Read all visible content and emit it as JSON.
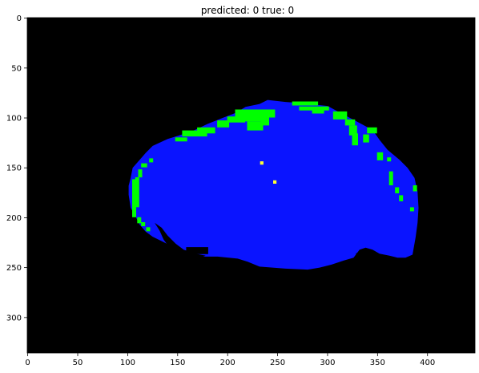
{
  "figure": {
    "title": "predicted: 0  true: 0"
  },
  "image": {
    "width": 448,
    "height": 336,
    "background_color": "#000000",
    "colors": {
      "tissue": "#0a14ff",
      "boundary": "#00ff00",
      "marker": "#ffff33"
    }
  },
  "axes": {
    "x_ticks": [
      "0",
      "50",
      "100",
      "150",
      "200",
      "250",
      "300",
      "350",
      "400"
    ],
    "x_tick_values": [
      0,
      50,
      100,
      150,
      200,
      250,
      300,
      350,
      400
    ],
    "y_ticks": [
      "0",
      "50",
      "100",
      "150",
      "200",
      "250",
      "300"
    ],
    "y_tick_values": [
      0,
      50,
      100,
      150,
      200,
      250,
      300
    ]
  }
}
